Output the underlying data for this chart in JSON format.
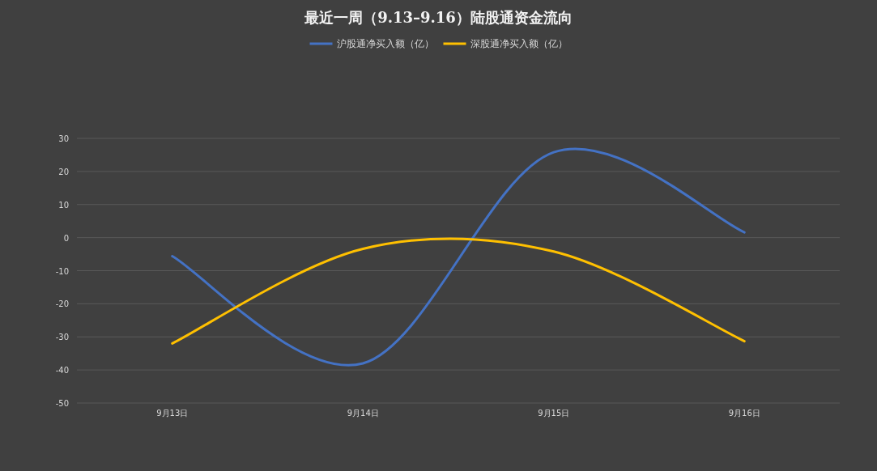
{
  "chart_data": {
    "type": "line",
    "title": "最近一周（9.13–9.16）陆股通资金流向",
    "categories": [
      "9月13日",
      "9月14日",
      "9月15日",
      "9月16日"
    ],
    "series": [
      {
        "name": "沪股通净买入额（亿）",
        "color": "#4472c4",
        "values": [
          -5.6,
          -38.0,
          25.8,
          1.6
        ]
      },
      {
        "name": "深股通净买入额（亿）",
        "color": "#ffc000",
        "values": [
          -32.0,
          -3.4,
          -4.2,
          -31.3
        ]
      }
    ],
    "ylim": [
      -50,
      30
    ],
    "yticks": [
      -50,
      -40,
      -30,
      -20,
      -10,
      0,
      10,
      20,
      30
    ],
    "grid": "y",
    "legend": "top",
    "marker": "none",
    "line_style": "solid"
  }
}
